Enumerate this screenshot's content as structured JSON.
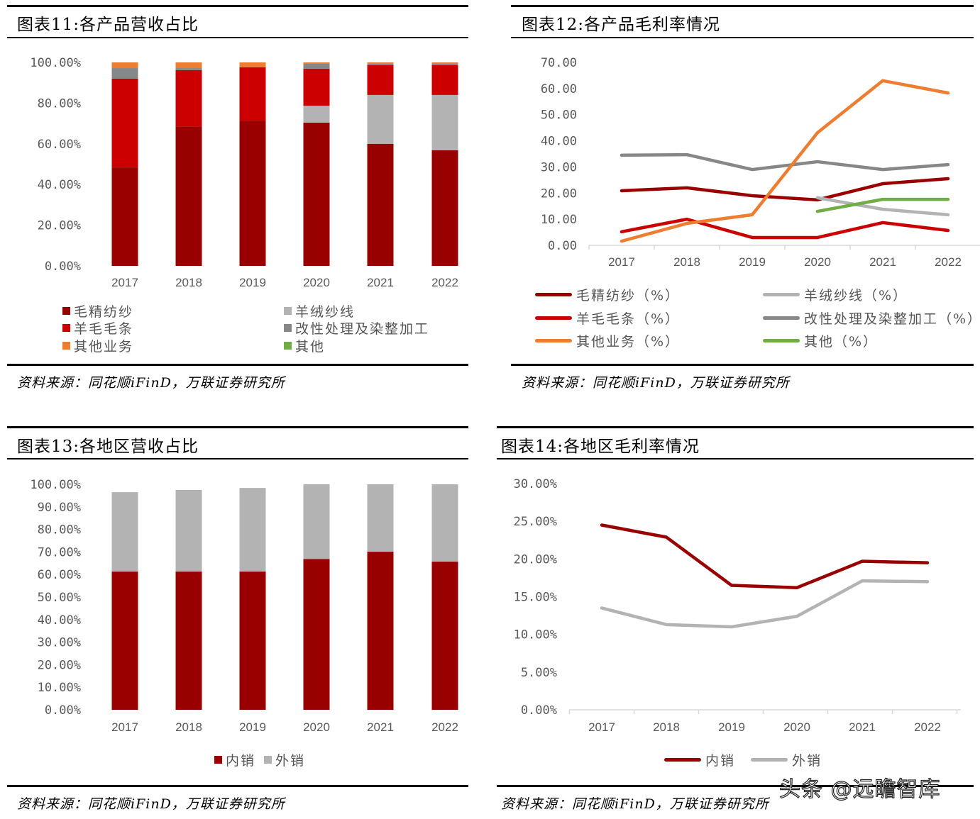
{
  "colors": {
    "dark_red": "#990000",
    "red": "#cc0000",
    "light_gray": "#b3b3b3",
    "gray": "#878787",
    "orange": "#ed7d31",
    "green": "#70ad47",
    "axis_text": "#595959"
  },
  "panels": [
    {
      "title": "图表11:各产品营收占比",
      "source": "资料来源：同花顺iFinD，万联证券研究所"
    },
    {
      "title": "图表12:各产品毛利率情况",
      "source": "资料来源：同花顺iFinD，万联证券研究所"
    },
    {
      "title": "图表13:各地区营收占比",
      "source": "资料来源：同花顺iFinD，万联证券研究所"
    },
    {
      "title": "图表14:各地区毛利率情况",
      "source": "资料来源：同花顺iFinD，万联证券研究所"
    }
  ],
  "watermark": "头条 @远瞻智库",
  "chart_data": [
    {
      "type": "bar",
      "stacked": true,
      "title": "图表11:各产品营收占比",
      "categories": [
        "2017",
        "2018",
        "2019",
        "2020",
        "2021",
        "2022"
      ],
      "ylim": [
        0,
        100
      ],
      "yticks": [
        "0.00%",
        "20.00%",
        "40.00%",
        "60.00%",
        "80.00%",
        "100.00%"
      ],
      "legend_position": "bottom",
      "series": [
        {
          "name": "毛精纺纱",
          "color": "#990000",
          "values": [
            48.4,
            68.6,
            71.4,
            70.4,
            60.0,
            56.8
          ]
        },
        {
          "name": "羊绒纱线",
          "color": "#b3b3b3",
          "values": [
            0,
            0,
            0,
            8.3,
            24.0,
            27.2
          ]
        },
        {
          "name": "羊毛毛条",
          "color": "#cc0000",
          "values": [
            43.6,
            27.6,
            26.2,
            18.2,
            14.6,
            14.6
          ]
        },
        {
          "name": "改性处理及染整加工",
          "color": "#878787",
          "values": [
            5.2,
            1.0,
            0,
            2.4,
            0.9,
            0.9
          ]
        },
        {
          "name": "其他业务",
          "color": "#ed7d31",
          "values": [
            2.8,
            2.8,
            2.4,
            0.7,
            0.5,
            0.5
          ]
        },
        {
          "name": "其他",
          "color": "#70ad47",
          "values": [
            0,
            0,
            0,
            0,
            0,
            0
          ]
        }
      ]
    },
    {
      "type": "line",
      "title": "图表12:各产品毛利率情况",
      "categories": [
        "2017",
        "2018",
        "2019",
        "2020",
        "2021",
        "2022"
      ],
      "ylim": [
        0,
        70
      ],
      "yticks": [
        "0.00",
        "10.00",
        "20.00",
        "30.00",
        "40.00",
        "50.00",
        "60.00",
        "70.00"
      ],
      "legend_position": "bottom",
      "series": [
        {
          "name": "毛精纺纱（%）",
          "color": "#990000",
          "values": [
            20.9,
            22.0,
            19.0,
            17.4,
            23.6,
            25.5
          ]
        },
        {
          "name": "羊绒纱线（%）",
          "color": "#b3b3b3",
          "values": [
            null,
            null,
            null,
            18.2,
            13.8,
            11.7
          ]
        },
        {
          "name": "羊毛毛条（%）",
          "color": "#cc0000",
          "values": [
            5.2,
            10.0,
            3.0,
            3.0,
            8.7,
            5.7
          ]
        },
        {
          "name": "改性处理及染整加工（%）",
          "color": "#878787",
          "values": [
            34.5,
            34.7,
            29.0,
            32.0,
            29.0,
            30.9
          ]
        },
        {
          "name": "其他业务（%）",
          "color": "#ed7d31",
          "values": [
            1.6,
            8.4,
            11.7,
            43.1,
            63.0,
            58.3
          ]
        },
        {
          "name": "其他（%）",
          "color": "#70ad47",
          "values": [
            null,
            null,
            null,
            13.0,
            17.6,
            17.6
          ]
        }
      ]
    },
    {
      "type": "bar",
      "stacked": true,
      "title": "图表13:各地区营收占比",
      "categories": [
        "2017",
        "2018",
        "2019",
        "2020",
        "2021",
        "2022"
      ],
      "ylim": [
        0,
        100
      ],
      "yticks": [
        "0.00%",
        "10.00%",
        "20.00%",
        "30.00%",
        "40.00%",
        "50.00%",
        "60.00%",
        "70.00%",
        "80.00%",
        "90.00%",
        "100.00%"
      ],
      "legend_position": "bottom",
      "series": [
        {
          "name": "内销",
          "color": "#990000",
          "values": [
            61.3,
            61.3,
            61.3,
            66.9,
            70.1,
            65.7
          ]
        },
        {
          "name": "外销",
          "color": "#b3b3b3",
          "values": [
            35.2,
            36.2,
            37.1,
            33.1,
            29.9,
            34.3
          ]
        }
      ]
    },
    {
      "type": "line",
      "title": "图表14:各地区毛利率情况",
      "categories": [
        "2017",
        "2018",
        "2019",
        "2020",
        "2021",
        "2022"
      ],
      "ylim": [
        0,
        30
      ],
      "yticks": [
        "0.00%",
        "5.00%",
        "10.00%",
        "15.00%",
        "20.00%",
        "25.00%",
        "30.00%"
      ],
      "legend_position": "bottom",
      "series": [
        {
          "name": "内销",
          "color": "#990000",
          "values": [
            24.5,
            22.9,
            16.5,
            16.2,
            19.7,
            19.5
          ]
        },
        {
          "name": "外销",
          "color": "#b3b3b3",
          "values": [
            13.5,
            11.3,
            11.0,
            12.4,
            17.1,
            17.0
          ]
        }
      ]
    }
  ]
}
